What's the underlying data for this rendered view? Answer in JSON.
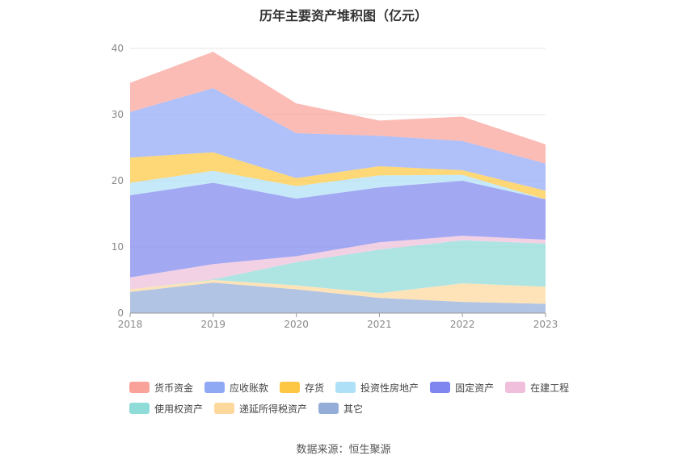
{
  "title": "历年主要资产堆积图（亿元）",
  "source": "数据来源：恒生聚源",
  "chart_data": {
    "type": "area",
    "stacked": true,
    "title": "历年主要资产堆积图（亿元）",
    "x": [
      "2018",
      "2019",
      "2020",
      "2021",
      "2022",
      "2023"
    ],
    "ylim": [
      0,
      40
    ],
    "yticks": [
      0,
      10,
      20,
      30,
      40
    ],
    "grid": true,
    "legend_position": "bottom",
    "series": [
      {
        "name": "其它",
        "color": "#93add8",
        "values": [
          3.2,
          4.6,
          3.6,
          2.3,
          1.7,
          1.4
        ]
      },
      {
        "name": "递延所得税资产",
        "color": "#fdd89c",
        "values": [
          0.4,
          0.4,
          0.6,
          0.7,
          2.8,
          2.6
        ]
      },
      {
        "name": "使用权资产",
        "color": "#8fdbd8",
        "values": [
          0.0,
          0.1,
          3.5,
          6.6,
          6.5,
          6.5
        ]
      },
      {
        "name": "在建工程",
        "color": "#efbfdb",
        "values": [
          1.8,
          2.3,
          0.9,
          1.1,
          0.7,
          0.6
        ]
      },
      {
        "name": "固定资产",
        "color": "#7f86ef",
        "values": [
          12.4,
          12.3,
          8.7,
          8.3,
          8.3,
          6.1
        ]
      },
      {
        "name": "投资性房地产",
        "color": "#aee1f7",
        "values": [
          1.9,
          1.8,
          1.9,
          1.8,
          0.9,
          0.0
        ]
      },
      {
        "name": "存货",
        "color": "#fdc743",
        "values": [
          3.8,
          2.8,
          1.2,
          1.4,
          0.7,
          1.3
        ]
      },
      {
        "name": "应收账款",
        "color": "#90a9f5",
        "values": [
          6.9,
          9.7,
          6.8,
          4.6,
          4.4,
          4.1
        ]
      },
      {
        "name": "货币资金",
        "color": "#f9a29a",
        "values": [
          4.4,
          5.5,
          4.5,
          2.3,
          3.7,
          2.9
        ]
      }
    ]
  },
  "legend": [
    {
      "name": "货币资金",
      "color": "#f9a29a"
    },
    {
      "name": "应收账款",
      "color": "#90a9f5"
    },
    {
      "name": "存货",
      "color": "#fdc743"
    },
    {
      "name": "投资性房地产",
      "color": "#aee1f7"
    },
    {
      "name": "固定资产",
      "color": "#7f86ef"
    },
    {
      "name": "在建工程",
      "color": "#efbfdb"
    },
    {
      "name": "使用权资产",
      "color": "#8fdbd8"
    },
    {
      "name": "递延所得税资产",
      "color": "#fdd89c"
    },
    {
      "name": "其它",
      "color": "#93add8"
    }
  ]
}
